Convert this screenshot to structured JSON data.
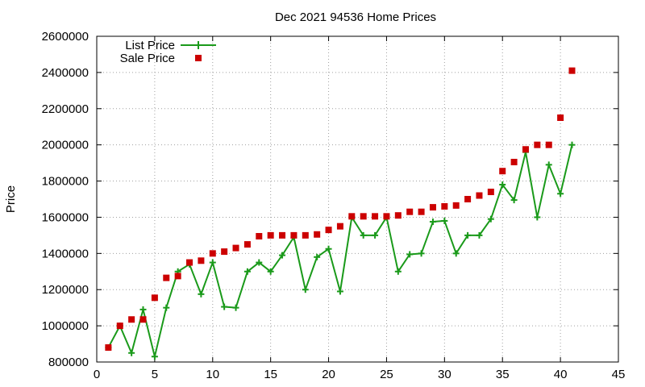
{
  "chart_data": {
    "type": "line",
    "title": "Dec 2021 94536 Home Prices",
    "ylabel": "Price",
    "xlabel": "",
    "xlim": [
      0,
      45
    ],
    "ylim": [
      800000,
      2600000
    ],
    "xticks": [
      "0",
      "5",
      "10",
      "15",
      "20",
      "25",
      "30",
      "35",
      "40",
      "45"
    ],
    "yticks": [
      "800000",
      "1000000",
      "1200000",
      "1400000",
      "1600000",
      "1800000",
      "2000000",
      "2200000",
      "2400000",
      "2600000"
    ],
    "grid": true,
    "legend_position": "top-left",
    "series": [
      {
        "name": "List Price",
        "style": "line+cross",
        "color": "#1a9a1a",
        "x": [
          1,
          2,
          3,
          4,
          5,
          6,
          7,
          8,
          9,
          10,
          11,
          12,
          13,
          14,
          15,
          16,
          17,
          18,
          19,
          20,
          21,
          22,
          23,
          24,
          25,
          26,
          27,
          28,
          29,
          30,
          31,
          32,
          33,
          34,
          35,
          36,
          37,
          38,
          39,
          40,
          41
        ],
        "values": [
          880000,
          1000000,
          850000,
          1090000,
          830000,
          1100000,
          1300000,
          1340000,
          1175000,
          1350000,
          1105000,
          1100000,
          1300000,
          1350000,
          1300000,
          1390000,
          1490000,
          1200000,
          1380000,
          1425000,
          1190000,
          1600000,
          1500000,
          1500000,
          1600000,
          1300000,
          1395000,
          1400000,
          1575000,
          1580000,
          1400000,
          1500000,
          1500000,
          1590000,
          1780000,
          1695000,
          1960000,
          1600000,
          1890000,
          1730000,
          2000000
        ]
      },
      {
        "name": "Sale Price",
        "style": "square",
        "color": "#cc0000",
        "x": [
          1,
          2,
          3,
          4,
          5,
          6,
          7,
          8,
          9,
          10,
          11,
          12,
          13,
          14,
          15,
          16,
          17,
          18,
          19,
          20,
          21,
          22,
          23,
          24,
          25,
          26,
          27,
          28,
          29,
          30,
          31,
          32,
          33,
          34,
          35,
          36,
          37,
          38,
          39,
          40,
          41
        ],
        "values": [
          880000,
          1000000,
          1035000,
          1035000,
          1155000,
          1265000,
          1275000,
          1350000,
          1360000,
          1400000,
          1410000,
          1430000,
          1450000,
          1495000,
          1500000,
          1500000,
          1500000,
          1500000,
          1505000,
          1530000,
          1550000,
          1605000,
          1605000,
          1605000,
          1605000,
          1610000,
          1630000,
          1630000,
          1655000,
          1660000,
          1665000,
          1700000,
          1720000,
          1740000,
          1855000,
          1905000,
          1975000,
          2000000,
          2000000,
          2150000,
          2410000
        ]
      }
    ]
  }
}
